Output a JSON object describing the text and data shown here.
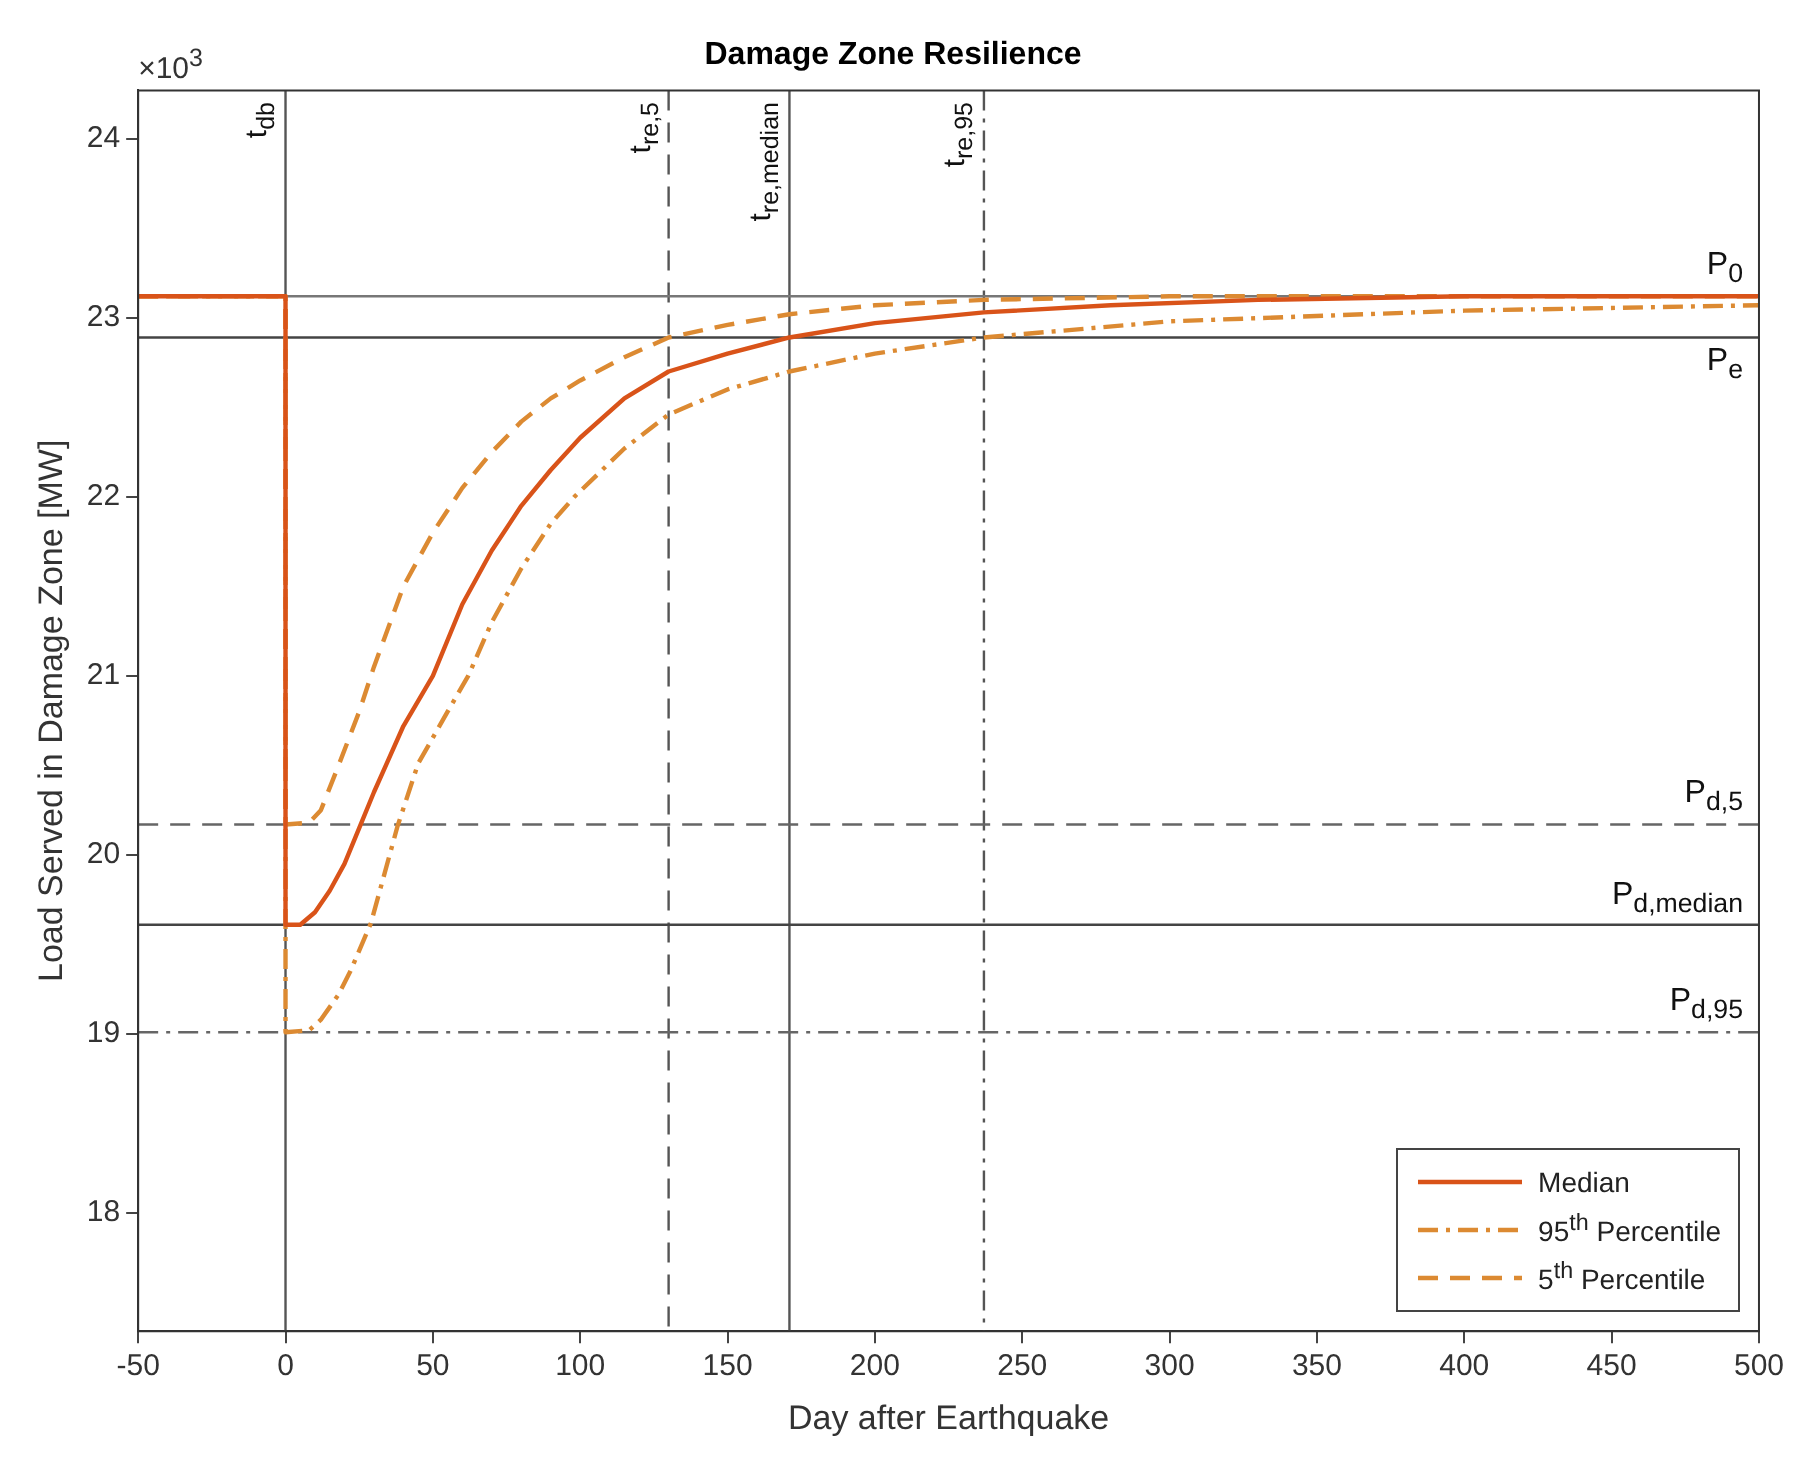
{
  "chart_data": {
    "type": "line",
    "title": "Damage Zone Resilience",
    "xlabel": "Day after Earthquake",
    "ylabel": "Load Served in Damage Zone [MW]",
    "annotations": [
      "×10$^{3}$"
    ],
    "xlim": [
      -50,
      500
    ],
    "xticks": [
      -50,
      0,
      50,
      100,
      150,
      200,
      250,
      300,
      350,
      400,
      450,
      500
    ],
    "ylim": [
      17.34,
      24.27
    ],
    "yticks": [
      18,
      19,
      20,
      21,
      22,
      23,
      24
    ],
    "grid": false,
    "legend": "bottom right",
    "marker": "none",
    "series": [
      {
        "name": "Median",
        "color": "#d95319",
        "line_style": "solid",
        "x": [
          -50,
          0,
          0,
          5,
          10,
          15,
          20,
          25,
          30,
          40,
          50,
          60,
          70,
          80,
          90,
          100,
          115,
          130,
          150,
          171,
          200,
          237,
          280,
          330,
          400,
          500
        ],
        "values": [
          23.12,
          23.12,
          19.61,
          19.61,
          19.68,
          19.8,
          19.95,
          20.15,
          20.35,
          20.72,
          21.0,
          21.4,
          21.7,
          21.95,
          22.15,
          22.33,
          22.55,
          22.7,
          22.8,
          22.89,
          22.97,
          23.03,
          23.07,
          23.1,
          23.12,
          23.12
        ]
      },
      {
        "name": "95$^{th}$ Percentile",
        "color": "#dc8a32",
        "line_style": "dashdot",
        "x": [
          -50,
          0,
          0,
          8,
          12,
          18,
          22,
          29,
          38,
          45,
          55,
          62,
          70,
          80,
          90,
          98,
          115,
          130,
          150,
          171,
          200,
          237,
          300,
          400,
          500
        ],
        "values": [
          23.12,
          23.12,
          19.01,
          19.02,
          19.08,
          19.22,
          19.35,
          19.62,
          20.16,
          20.51,
          20.8,
          21.0,
          21.3,
          21.6,
          21.85,
          22.0,
          22.27,
          22.46,
          22.6,
          22.7,
          22.8,
          22.89,
          22.98,
          23.04,
          23.07
        ]
      },
      {
        "name": "5$^{th}$ Percentile",
        "color": "#dc8a32",
        "line_style": "dashed",
        "x": [
          -50,
          0,
          0,
          8,
          12,
          18,
          25,
          30,
          40,
          50,
          60,
          70,
          80,
          90,
          100,
          115,
          130,
          150,
          171,
          200,
          237,
          300,
          500
        ],
        "values": [
          23.12,
          23.12,
          20.17,
          20.18,
          20.25,
          20.5,
          20.8,
          21.05,
          21.5,
          21.8,
          22.05,
          22.25,
          22.42,
          22.55,
          22.65,
          22.78,
          22.89,
          22.96,
          23.02,
          23.07,
          23.1,
          23.12,
          23.12
        ]
      }
    ],
    "ref_lines": [
      {
        "axis": "x",
        "value": 0,
        "label": "t$_{db}$",
        "color": "#555555",
        "line_style": "solid"
      },
      {
        "axis": "x",
        "value": 130,
        "label": "t$_{re,5}$",
        "color": "#555555",
        "line_style": "dashed"
      },
      {
        "axis": "x",
        "value": 171,
        "label": "t$_{re,median}$",
        "color": "#555555",
        "line_style": "solid"
      },
      {
        "axis": "x",
        "value": 237,
        "label": "t$_{re,95}$",
        "color": "#555555",
        "line_style": "dashdot"
      },
      {
        "axis": "y",
        "value": 23.12,
        "label": "P$_{0}$",
        "color": "#777777",
        "line_style": "solid"
      },
      {
        "axis": "y",
        "value": 22.89,
        "label": "P$_{e}$",
        "color": "#444444",
        "line_style": "solid"
      },
      {
        "axis": "y",
        "value": 20.17,
        "label": "P$_{d,5}$",
        "color": "#666666",
        "line_style": "dashed"
      },
      {
        "axis": "y",
        "value": 19.61,
        "label": "P$_{d,median}$",
        "color": "#444444",
        "line_style": "solid"
      },
      {
        "axis": "y",
        "value": 19.01,
        "label": "P$_{d,95}$",
        "color": "#666666",
        "line_style": "dashdot"
      }
    ]
  }
}
